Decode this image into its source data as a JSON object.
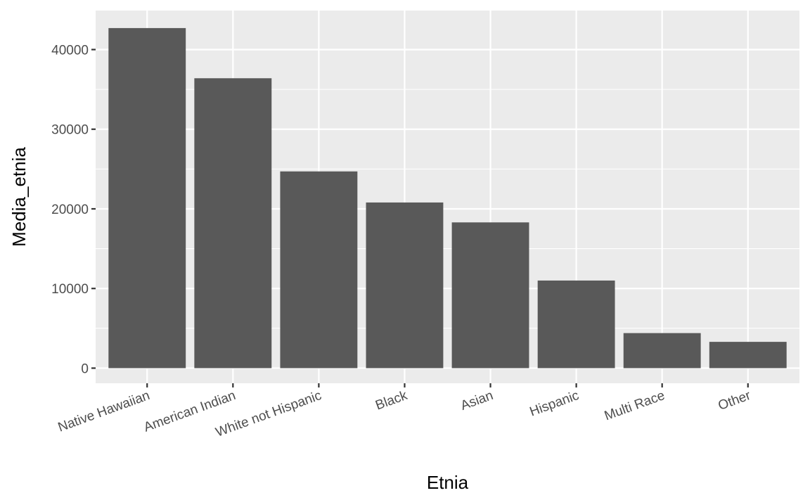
{
  "chart_data": {
    "type": "bar",
    "categories": [
      "Native Hawaiian",
      "American Indian",
      "White not Hispanic",
      "Black",
      "Asian",
      "Hispanic",
      "Multi Race",
      "Other"
    ],
    "values": [
      42700,
      36400,
      24700,
      20800,
      18300,
      11000,
      4400,
      3300
    ],
    "title": "",
    "xlabel": "Etnia",
    "ylabel": "Media_etnia",
    "ylim": [
      -1900,
      44900
    ],
    "yticks": [
      0,
      10000,
      20000,
      30000,
      40000
    ],
    "ytick_labels": [
      "0",
      "10000",
      "20000",
      "30000",
      "40000"
    ],
    "grid": true,
    "colors": {
      "bar": "#595959",
      "panel_background": "#ebebeb",
      "grid": "#ffffff",
      "text": "#4d4d4d",
      "axis_title": "#000000",
      "tick": "#333333"
    }
  }
}
